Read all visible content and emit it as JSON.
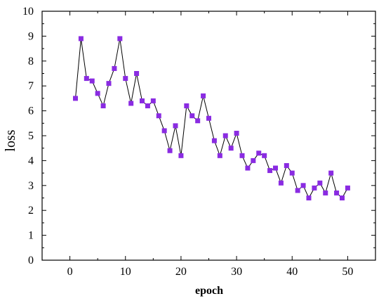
{
  "chart_data": {
    "type": "line",
    "xlabel": "epoch",
    "ylabel": "loss",
    "xlim": [
      -5,
      55
    ],
    "ylim": [
      0,
      10
    ],
    "x_ticks": [
      0,
      10,
      20,
      30,
      40,
      50
    ],
    "y_ticks": [
      0,
      1,
      2,
      3,
      4,
      5,
      6,
      7,
      8,
      9,
      10
    ],
    "grid": false,
    "legend": "none",
    "marker": "square",
    "marker_color": "#8a2be2",
    "line_color": "#000000",
    "x": [
      1,
      2,
      3,
      4,
      5,
      6,
      7,
      8,
      9,
      10,
      11,
      12,
      13,
      14,
      15,
      16,
      17,
      18,
      19,
      20,
      21,
      22,
      23,
      24,
      25,
      26,
      27,
      28,
      29,
      30,
      31,
      32,
      33,
      34,
      35,
      36,
      37,
      38,
      39,
      40,
      41,
      42,
      43,
      44,
      45,
      46,
      47,
      48,
      49,
      50
    ],
    "y": [
      6.5,
      8.9,
      7.3,
      7.2,
      6.7,
      6.2,
      7.1,
      7.7,
      8.9,
      7.3,
      6.3,
      7.5,
      6.4,
      6.2,
      6.4,
      5.8,
      5.2,
      4.4,
      5.4,
      4.2,
      6.2,
      5.8,
      5.6,
      6.6,
      5.7,
      4.8,
      4.2,
      5.0,
      4.5,
      5.1,
      4.2,
      3.7,
      4.0,
      4.3,
      4.2,
      3.6,
      3.7,
      3.1,
      3.8,
      3.5,
      2.8,
      3.0,
      2.5,
      2.9,
      3.1,
      2.7,
      3.5,
      2.7,
      2.5,
      2.9
    ]
  }
}
